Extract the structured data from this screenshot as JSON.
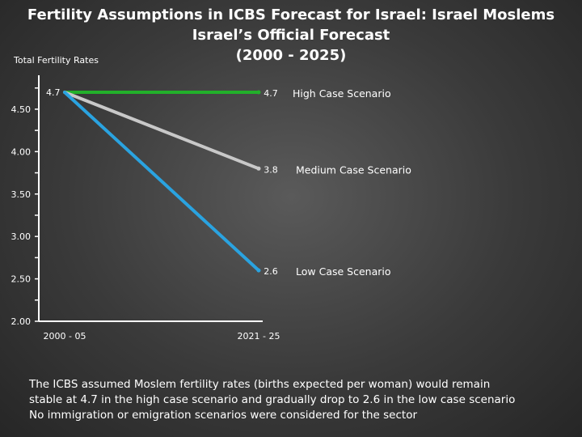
{
  "slide": {
    "title_line1": "Fertility Assumptions in ICBS Forecast for Israel:  Israel Moslems",
    "title_line2": "Israel’s Official Forecast",
    "title_line3": "(2000 - 2025)",
    "footnote_line1": "The ICBS assumed Moslem fertility rates (births expected per woman) would remain",
    "footnote_line2": "stable at 4.7 in the high case scenario and gradually drop to 2.6 in the low case scenario",
    "footnote_line3": "No immigration or emigration scenarios were considered for the sector"
  },
  "chart_data": {
    "type": "line",
    "title": "",
    "ylabel": "Total Fertility Rates",
    "xlabel": "",
    "categories": [
      "2000 - 05",
      "2021 - 25"
    ],
    "ylim": [
      2.0,
      4.9
    ],
    "yticks": [
      "2.00",
      "2.50",
      "3.00",
      "3.50",
      "4.00",
      "4.50"
    ],
    "start_label": "4.7",
    "series": [
      {
        "name": "High Case Scenario",
        "values": [
          4.7,
          4.7
        ],
        "end_label": "4.7",
        "color": "#22b02a"
      },
      {
        "name": "Medium Case Scenario",
        "values": [
          4.7,
          3.8
        ],
        "end_label": "3.8",
        "color": "#c8c8c8"
      },
      {
        "name": "Low Case Scenario",
        "values": [
          4.7,
          2.6
        ],
        "end_label": "2.6",
        "color": "#2aa3e0"
      }
    ],
    "grid": false,
    "legend": "right"
  }
}
